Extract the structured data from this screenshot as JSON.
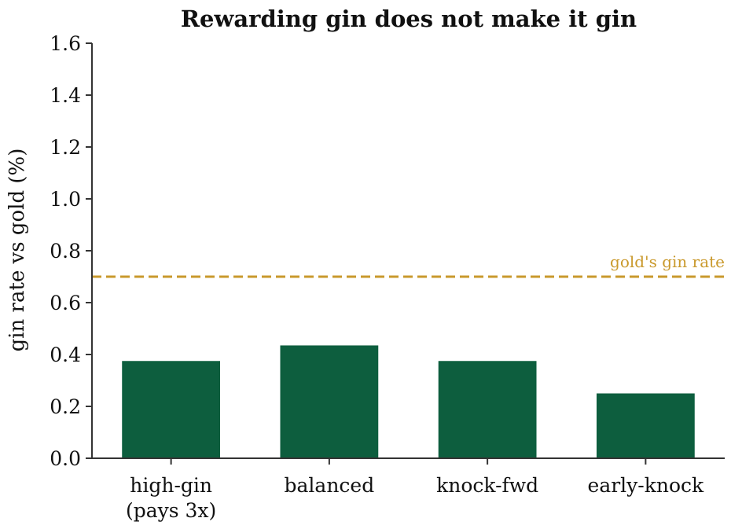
{
  "chart_data": {
    "type": "bar",
    "title": "Rewarding gin does not make it gin",
    "ylabel": "gin rate vs gold (%)",
    "xlabel": "",
    "categories": [
      [
        "high-gin",
        "(pays 3x)"
      ],
      [
        "balanced"
      ],
      [
        "knock-fwd"
      ],
      [
        "early-knock"
      ]
    ],
    "values": [
      0.375,
      0.435,
      0.375,
      0.25
    ],
    "ylim": [
      0,
      1.6
    ],
    "yticks": [
      0.0,
      0.2,
      0.4,
      0.6,
      0.8,
      1.0,
      1.2,
      1.4,
      1.6
    ],
    "ytick_labels": [
      "0.0",
      "0.2",
      "0.4",
      "0.6",
      "0.8",
      "1.0",
      "1.2",
      "1.4",
      "1.6"
    ],
    "grid": false,
    "reference_line": {
      "value": 0.7,
      "label": "gold's gin rate",
      "style": "dashed"
    },
    "colors": {
      "bar": "#0d5e3e",
      "reference": "#c9992c",
      "axis": "#333333"
    }
  }
}
